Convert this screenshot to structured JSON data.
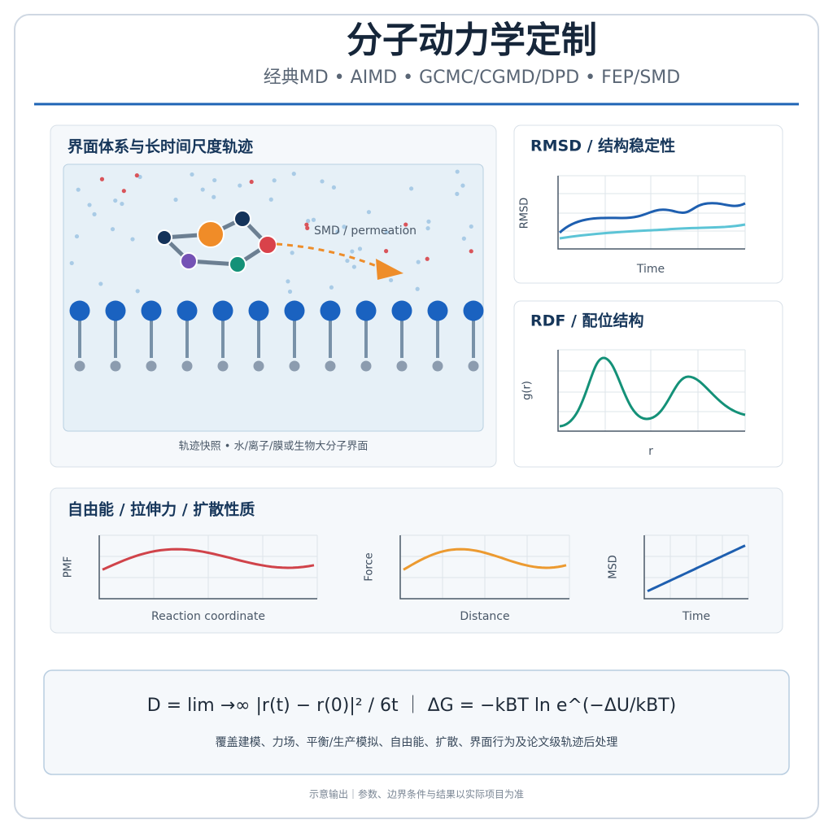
{
  "header": {
    "title": "分子动力学定制",
    "subtitle": "经典MD • AIMD • GCMC/CGMD/DPD • FEP/SMD"
  },
  "interface_panel": {
    "title": "界面体系与长时间尺度轨迹",
    "annotation": "SMD / permeation",
    "caption": "轨迹快照 • 水/离子/膜或生物大分子界面"
  },
  "rmsd_panel": {
    "title": "RMSD / 结构稳定性",
    "y_label": "RMSD",
    "x_label": "Time"
  },
  "rdf_panel": {
    "title": "RDF / 配位结构",
    "y_label": "g(r)",
    "x_label": "r"
  },
  "properties_panel": {
    "title": "自由能 / 拉伸力 / 扩散性质",
    "charts": [
      {
        "y_label": "PMF",
        "x_label": "Reaction coordinate"
      },
      {
        "y_label": "Force",
        "x_label": "Distance"
      },
      {
        "y_label": "MSD",
        "x_label": "Time"
      }
    ]
  },
  "formula_box": {
    "formula": "D = lim  →∞  |r(t) − r(0)|²   / 6t  ｜  ΔG = −kBT ln  e^(−ΔU/kBT)",
    "description": "覆盖建模、力场、平衡/生产模拟、自由能、扩散、界面行为及论文级轨迹后处理"
  },
  "footer": "示意输出｜参数、边界条件与结果以实际项目为准"
}
